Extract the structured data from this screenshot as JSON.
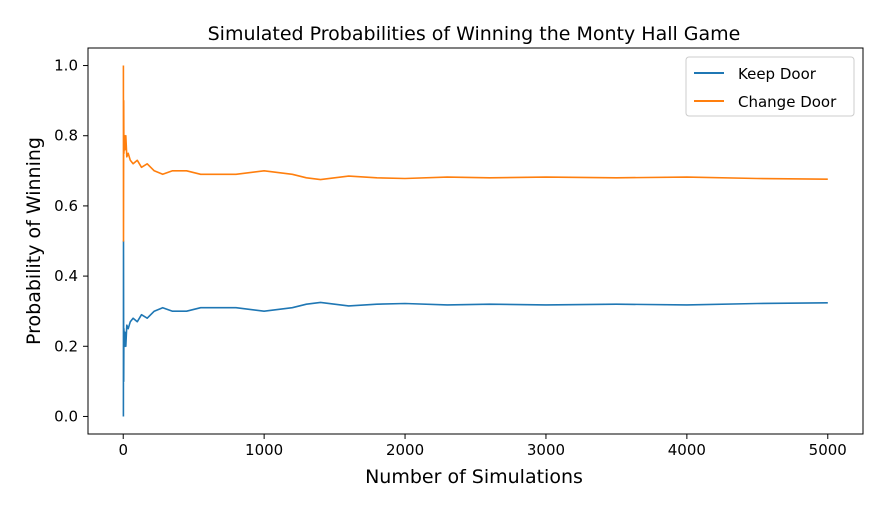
{
  "chart_data": {
    "type": "line",
    "title": "Simulated Probabilities of Winning the Monty Hall Game",
    "xlabel": "Number of Simulations",
    "ylabel": "Probability of Winning",
    "xlim": [
      -250,
      5250
    ],
    "ylim": [
      -0.05,
      1.05
    ],
    "xticks": [
      0,
      1000,
      2000,
      3000,
      4000,
      5000
    ],
    "xtick_labels": [
      "0",
      "1000",
      "2000",
      "3000",
      "4000",
      "5000"
    ],
    "yticks": [
      0.0,
      0.2,
      0.4,
      0.6,
      0.8,
      1.0
    ],
    "ytick_labels": [
      "0.0",
      "0.2",
      "0.4",
      "0.6",
      "0.8",
      "1.0"
    ],
    "grid": false,
    "legend_position": "top-right",
    "series": [
      {
        "name": "Keep Door",
        "color": "#1f77b4",
        "x": [
          1,
          2,
          3,
          5,
          8,
          12,
          18,
          25,
          35,
          50,
          70,
          100,
          130,
          170,
          220,
          280,
          350,
          450,
          550,
          650,
          800,
          1000,
          1100,
          1200,
          1300,
          1400,
          1600,
          1800,
          2000,
          2300,
          2600,
          3000,
          3500,
          4000,
          4500,
          5000
        ],
        "y": [
          0.0,
          0.5,
          0.1,
          0.25,
          0.2,
          0.24,
          0.2,
          0.26,
          0.25,
          0.27,
          0.28,
          0.27,
          0.29,
          0.28,
          0.3,
          0.31,
          0.3,
          0.3,
          0.31,
          0.31,
          0.31,
          0.3,
          0.305,
          0.31,
          0.32,
          0.325,
          0.315,
          0.32,
          0.322,
          0.318,
          0.32,
          0.318,
          0.32,
          0.318,
          0.322,
          0.324
        ]
      },
      {
        "name": "Change Door",
        "color": "#ff7f0e",
        "x": [
          1,
          2,
          3,
          5,
          8,
          12,
          18,
          25,
          35,
          50,
          70,
          100,
          130,
          170,
          220,
          280,
          350,
          450,
          550,
          650,
          800,
          1000,
          1100,
          1200,
          1300,
          1400,
          1600,
          1800,
          2000,
          2300,
          2600,
          3000,
          3500,
          4000,
          4500,
          5000
        ],
        "y": [
          1.0,
          0.5,
          0.9,
          0.75,
          0.8,
          0.76,
          0.8,
          0.74,
          0.75,
          0.73,
          0.72,
          0.73,
          0.71,
          0.72,
          0.7,
          0.69,
          0.7,
          0.7,
          0.69,
          0.69,
          0.69,
          0.7,
          0.695,
          0.69,
          0.68,
          0.675,
          0.685,
          0.68,
          0.678,
          0.682,
          0.68,
          0.682,
          0.68,
          0.682,
          0.678,
          0.676
        ]
      }
    ]
  }
}
